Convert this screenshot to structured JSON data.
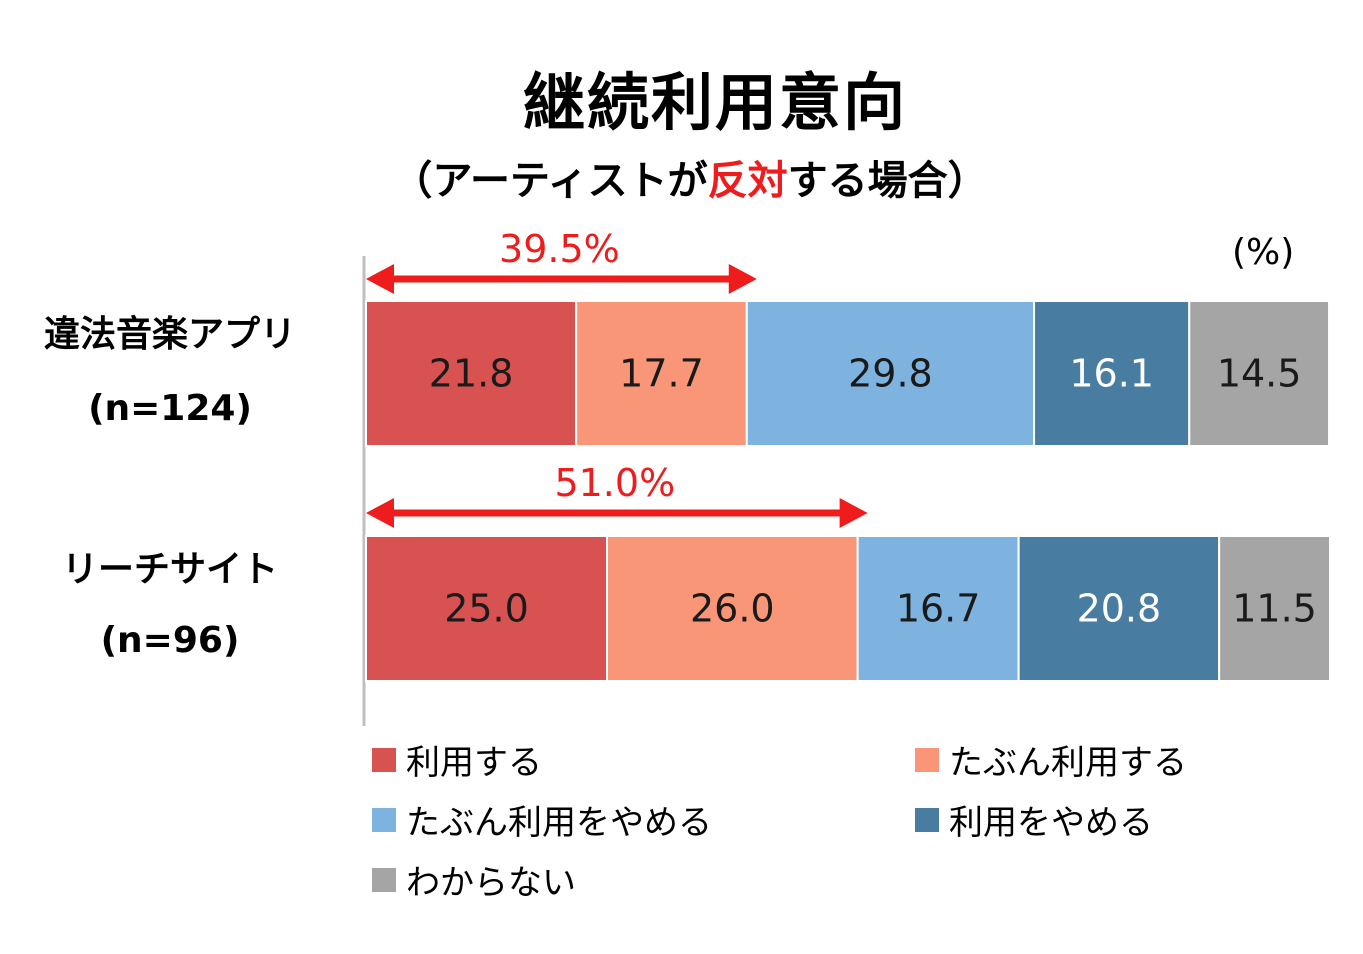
{
  "title": "継続利用意向",
  "subtitle": {
    "open": "（アーティストが",
    "highlight": "反対",
    "close": "する場合）"
  },
  "unit_label": "(%)",
  "colors": {
    "highlight": "#ee1c1c",
    "arrow": "#ee1c1c",
    "axis": "#bfbfbf"
  },
  "chart_data": {
    "type": "bar",
    "orientation": "horizontal",
    "stacked": true,
    "percent": true,
    "xlim": [
      0,
      100
    ],
    "categories": [
      {
        "name": "違法音楽アプリ",
        "n": "(n=124)"
      },
      {
        "name": "リーチサイト",
        "n": "(n=96)"
      }
    ],
    "series": [
      {
        "name": "利用する",
        "values": [
          21.8,
          25.0
        ],
        "labels": [
          "21.8",
          "25.0"
        ],
        "color": "#d85252",
        "text_color": "#1a1a1a"
      },
      {
        "name": "たぶん利用する",
        "values": [
          17.7,
          26.0
        ],
        "labels": [
          "17.7",
          "26.0"
        ],
        "color": "#f99677",
        "text_color": "#1a1a1a"
      },
      {
        "name": "たぶん利用をやめる",
        "values": [
          29.8,
          16.7
        ],
        "labels": [
          "29.8",
          "16.7"
        ],
        "color": "#7eb3e0",
        "text_color": "#1a1a1a"
      },
      {
        "name": "利用をやめる",
        "values": [
          16.1,
          20.8
        ],
        "labels": [
          "16.1",
          "20.8"
        ],
        "color": "#487ca0",
        "text_color": "#ffffff"
      },
      {
        "name": "わからない",
        "values": [
          14.5,
          11.5
        ],
        "labels": [
          "14.5",
          "11.5"
        ],
        "color": "#a5a5a5",
        "text_color": "#1a1a1a"
      }
    ],
    "annotations": [
      {
        "label": "39.5%",
        "value": 39.5,
        "category_index": 0
      },
      {
        "label": "51.0%",
        "value": 51.0,
        "category_index": 1
      }
    ],
    "legend_position": "bottom"
  }
}
